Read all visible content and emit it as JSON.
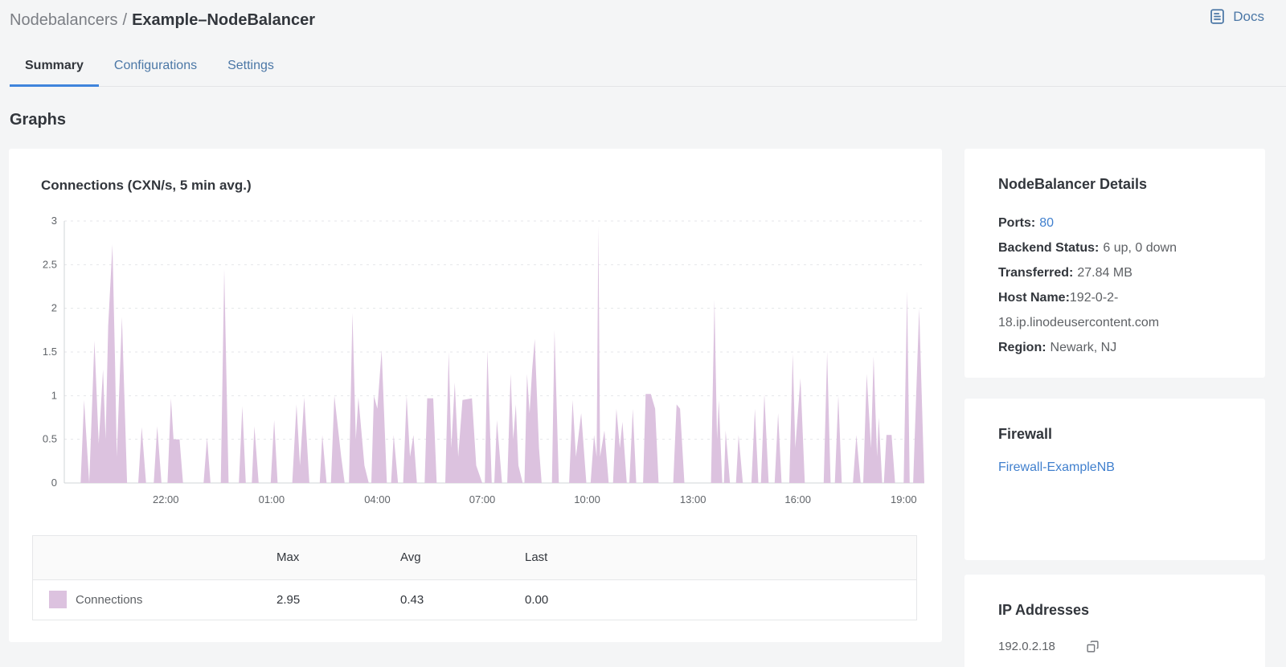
{
  "colors": {
    "accent_blue": "#3f84dc",
    "link_blue": "#4180ce",
    "steel_blue": "#4b77a6",
    "chart_purple": "#dcc2df",
    "text_dark": "#32363c",
    "text_gray": "#5e6165",
    "background": "#f4f5f6"
  },
  "breadcrumb": {
    "section": "Nodebalancers",
    "separator": "/",
    "current": "Example–NodeBalancer"
  },
  "docs": {
    "label": "Docs"
  },
  "tabs": [
    {
      "label": "Summary",
      "active": true
    },
    {
      "label": "Configurations",
      "active": false
    },
    {
      "label": "Settings",
      "active": false
    }
  ],
  "graphs_heading": "Graphs",
  "chart_data": {
    "type": "area",
    "title": "Connections (CXN/s, 5 min avg.)",
    "series_name": "Connections",
    "unit": "CXN/s",
    "color": "#dcc2df",
    "grid": "dashed-horizontal",
    "legend_position": "bottom-table",
    "ylim": [
      0,
      3
    ],
    "y_ticks": [
      0,
      0.5,
      1,
      1.5,
      2,
      2.5,
      3
    ],
    "x_ticks": [
      {
        "label": "22:00",
        "f": 0.118
      },
      {
        "label": "01:00",
        "f": 0.241
      },
      {
        "label": "04:00",
        "f": 0.364
      },
      {
        "label": "07:00",
        "f": 0.486
      },
      {
        "label": "10:00",
        "f": 0.608
      },
      {
        "label": "13:00",
        "f": 0.731
      },
      {
        "label": "16:00",
        "f": 0.853
      },
      {
        "label": "19:00",
        "f": 0.976
      }
    ],
    "stats": {
      "max": 2.95,
      "avg": 0.43,
      "last": 0.0
    },
    "points": [
      [
        0.019,
        0
      ],
      [
        0.023,
        0.95
      ],
      [
        0.029,
        0
      ],
      [
        0.035,
        1.63
      ],
      [
        0.04,
        0.45
      ],
      [
        0.045,
        1.3
      ],
      [
        0.048,
        0.5
      ],
      [
        0.051,
        1.8
      ],
      [
        0.056,
        2.73
      ],
      [
        0.059,
        1.4
      ],
      [
        0.061,
        0.3
      ],
      [
        0.067,
        1.9
      ],
      [
        0.073,
        0
      ],
      [
        0.086,
        0
      ],
      [
        0.09,
        0.64
      ],
      [
        0.095,
        0
      ],
      [
        0.104,
        0
      ],
      [
        0.108,
        0.65
      ],
      [
        0.113,
        0
      ],
      [
        0.12,
        0
      ],
      [
        0.124,
        0.97
      ],
      [
        0.127,
        0.5
      ],
      [
        0.134,
        0.5
      ],
      [
        0.138,
        0
      ],
      [
        0.162,
        0
      ],
      [
        0.166,
        0.52
      ],
      [
        0.17,
        0
      ],
      [
        0.182,
        0
      ],
      [
        0.186,
        2.45
      ],
      [
        0.191,
        0
      ],
      [
        0.203,
        0
      ],
      [
        0.207,
        0.88
      ],
      [
        0.211,
        0
      ],
      [
        0.218,
        0
      ],
      [
        0.221,
        0.65
      ],
      [
        0.226,
        0
      ],
      [
        0.24,
        0
      ],
      [
        0.244,
        0.72
      ],
      [
        0.248,
        0
      ],
      [
        0.265,
        0
      ],
      [
        0.27,
        0.9
      ],
      [
        0.274,
        0.2
      ],
      [
        0.279,
        0.98
      ],
      [
        0.285,
        0
      ],
      [
        0.297,
        0
      ],
      [
        0.3,
        0.55
      ],
      [
        0.305,
        0
      ],
      [
        0.31,
        0
      ],
      [
        0.314,
        1.0
      ],
      [
        0.322,
        0.3
      ],
      [
        0.326,
        0
      ],
      [
        0.331,
        0
      ],
      [
        0.335,
        1.95
      ],
      [
        0.339,
        0.5
      ],
      [
        0.342,
        0.98
      ],
      [
        0.349,
        0.2
      ],
      [
        0.354,
        0
      ],
      [
        0.357,
        0
      ],
      [
        0.36,
        1.0
      ],
      [
        0.364,
        0.85
      ],
      [
        0.369,
        1.52
      ],
      [
        0.375,
        0
      ],
      [
        0.38,
        0
      ],
      [
        0.383,
        0.55
      ],
      [
        0.388,
        0
      ],
      [
        0.394,
        0
      ],
      [
        0.398,
        1.0
      ],
      [
        0.402,
        0.3
      ],
      [
        0.406,
        0.55
      ],
      [
        0.41,
        0
      ],
      [
        0.419,
        0
      ],
      [
        0.422,
        0.97
      ],
      [
        0.429,
        0.97
      ],
      [
        0.433,
        0
      ],
      [
        0.443,
        0
      ],
      [
        0.447,
        1.5
      ],
      [
        0.45,
        0.4
      ],
      [
        0.454,
        1.15
      ],
      [
        0.458,
        0.3
      ],
      [
        0.463,
        0.95
      ],
      [
        0.474,
        0.97
      ],
      [
        0.479,
        0.2
      ],
      [
        0.486,
        0
      ],
      [
        0.489,
        0
      ],
      [
        0.492,
        1.52
      ],
      [
        0.497,
        0
      ],
      [
        0.5,
        0
      ],
      [
        0.503,
        0.72
      ],
      [
        0.509,
        0
      ],
      [
        0.515,
        0
      ],
      [
        0.519,
        1.25
      ],
      [
        0.522,
        0.5
      ],
      [
        0.525,
        0.9
      ],
      [
        0.528,
        0.2
      ],
      [
        0.533,
        0
      ],
      [
        0.535,
        0
      ],
      [
        0.538,
        1.25
      ],
      [
        0.541,
        0.8
      ],
      [
        0.544,
        1.3
      ],
      [
        0.547,
        1.65
      ],
      [
        0.552,
        0.4
      ],
      [
        0.555,
        0
      ],
      [
        0.567,
        0
      ],
      [
        0.57,
        1.75
      ],
      [
        0.575,
        0
      ],
      [
        0.587,
        0
      ],
      [
        0.591,
        0.95
      ],
      [
        0.595,
        0.3
      ],
      [
        0.601,
        0.8
      ],
      [
        0.607,
        0
      ],
      [
        0.612,
        0
      ],
      [
        0.616,
        0.55
      ],
      [
        0.619,
        0.3
      ],
      [
        0.621,
        2.95
      ],
      [
        0.623,
        0.3
      ],
      [
        0.628,
        0.6
      ],
      [
        0.633,
        0
      ],
      [
        0.638,
        0
      ],
      [
        0.642,
        0.85
      ],
      [
        0.646,
        0.4
      ],
      [
        0.649,
        0.7
      ],
      [
        0.654,
        0
      ],
      [
        0.657,
        0
      ],
      [
        0.661,
        0.85
      ],
      [
        0.665,
        0
      ],
      [
        0.673,
        0
      ],
      [
        0.676,
        1.02
      ],
      [
        0.682,
        1.02
      ],
      [
        0.687,
        0.85
      ],
      [
        0.691,
        0
      ],
      [
        0.708,
        0
      ],
      [
        0.712,
        0.9
      ],
      [
        0.716,
        0.85
      ],
      [
        0.721,
        0
      ],
      [
        0.752,
        0
      ],
      [
        0.756,
        2.1
      ],
      [
        0.759,
        0.5
      ],
      [
        0.761,
        0.95
      ],
      [
        0.765,
        0
      ],
      [
        0.767,
        0
      ],
      [
        0.769,
        0.6
      ],
      [
        0.774,
        0
      ],
      [
        0.781,
        0
      ],
      [
        0.784,
        0.55
      ],
      [
        0.789,
        0
      ],
      [
        0.799,
        0
      ],
      [
        0.803,
        0.85
      ],
      [
        0.807,
        0
      ],
      [
        0.81,
        0
      ],
      [
        0.814,
        1.02
      ],
      [
        0.819,
        0
      ],
      [
        0.826,
        0
      ],
      [
        0.83,
        0.8
      ],
      [
        0.834,
        0
      ],
      [
        0.843,
        0
      ],
      [
        0.847,
        1.48
      ],
      [
        0.85,
        0.4
      ],
      [
        0.856,
        1.2
      ],
      [
        0.861,
        0
      ],
      [
        0.883,
        0
      ],
      [
        0.887,
        1.5
      ],
      [
        0.891,
        0
      ],
      [
        0.896,
        0
      ],
      [
        0.9,
        1.0
      ],
      [
        0.904,
        0
      ],
      [
        0.917,
        0
      ],
      [
        0.921,
        0.55
      ],
      [
        0.926,
        0
      ],
      [
        0.929,
        0
      ],
      [
        0.933,
        1.25
      ],
      [
        0.938,
        0.4
      ],
      [
        0.941,
        1.45
      ],
      [
        0.945,
        0.3
      ],
      [
        0.947,
        0.75
      ],
      [
        0.951,
        0
      ],
      [
        0.953,
        0
      ],
      [
        0.956,
        0.55
      ],
      [
        0.962,
        0.55
      ],
      [
        0.966,
        0
      ],
      [
        0.976,
        0
      ],
      [
        0.98,
        2.2
      ],
      [
        0.983,
        0
      ],
      [
        0.987,
        0
      ],
      [
        0.994,
        2.0
      ],
      [
        1.0,
        0
      ]
    ]
  },
  "legend_table": {
    "headers": [
      "Max",
      "Avg",
      "Last"
    ],
    "rows": [
      {
        "label": "Connections",
        "max": "2.95",
        "avg": "0.43",
        "last": "0.00",
        "color": "#dcc2df"
      }
    ]
  },
  "details_card": {
    "title": "NodeBalancer Details",
    "rows": [
      {
        "label": "Ports:",
        "value": "80",
        "is_link": true
      },
      {
        "label": "Backend Status:",
        "value": "6 up, 0 down"
      },
      {
        "label": "Transferred:",
        "value": "27.84 MB"
      },
      {
        "label": "Host Name:",
        "value": "192-0-2-18.ip.linodeusercontent.com"
      },
      {
        "label": "Region:",
        "value": "Newark, NJ"
      }
    ]
  },
  "firewall_card": {
    "title": "Firewall",
    "link": "Firewall-ExampleNB"
  },
  "ip_card": {
    "title": "IP Addresses",
    "ip": "192.0.2.18"
  }
}
